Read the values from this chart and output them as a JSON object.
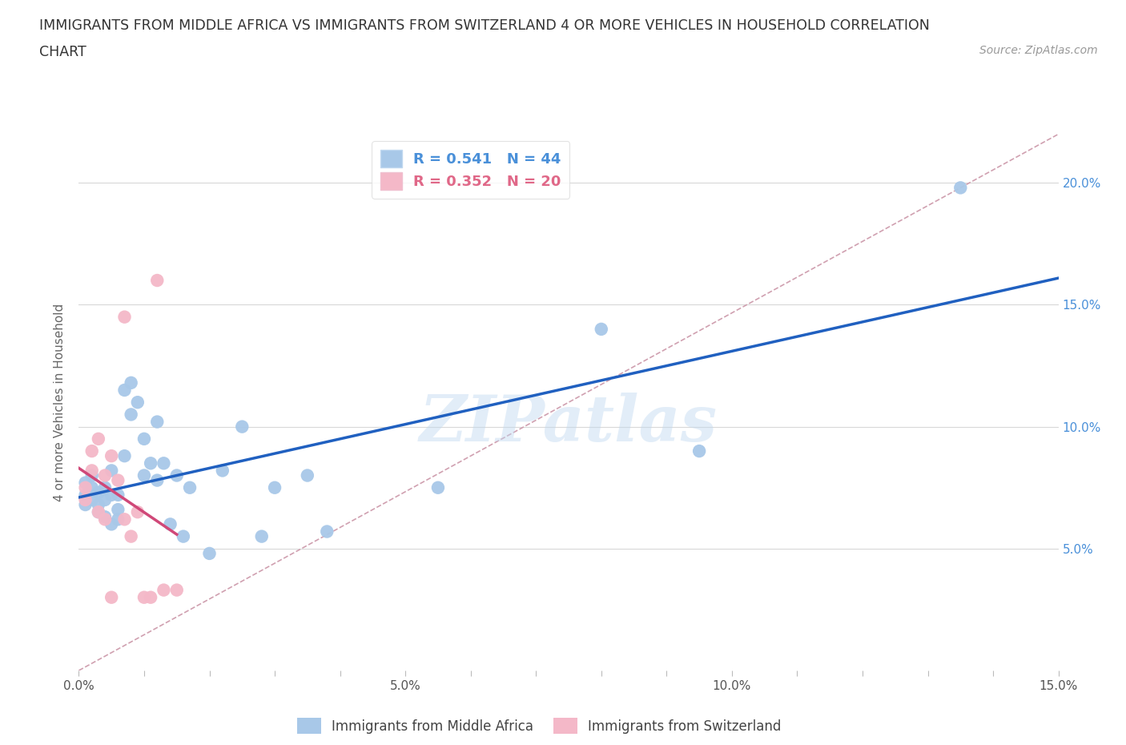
{
  "title_line1": "IMMIGRANTS FROM MIDDLE AFRICA VS IMMIGRANTS FROM SWITZERLAND 4 OR MORE VEHICLES IN HOUSEHOLD CORRELATION",
  "title_line2": "CHART",
  "source_text": "Source: ZipAtlas.com",
  "ylabel": "4 or more Vehicles in Household",
  "xmin": 0.0,
  "xmax": 0.15,
  "ymin": 0.0,
  "ymax": 0.22,
  "ytick_values": [
    0.0,
    0.05,
    0.1,
    0.15,
    0.2
  ],
  "watermark_text": "ZIPatlas",
  "series1_color": "#a8c8e8",
  "series2_color": "#f4b8c8",
  "series1_edge": "#90b8d8",
  "series2_edge": "#e898a8",
  "series1_label": "Immigrants from Middle Africa",
  "series2_label": "Immigrants from Switzerland",
  "R1": 0.541,
  "N1": 44,
  "R2": 0.352,
  "N2": 20,
  "legend_R1_color": "#4a90d9",
  "legend_R2_color": "#e06888",
  "right_axis_color": "#4a90d9",
  "trendline1_color": "#2060c0",
  "trendline2_color": "#d04878",
  "diagonal_color": "#d0a0b0",
  "diagonal_linestyle": "--",
  "hline_color": "#d8d8d8",
  "background_color": "#ffffff",
  "series1_x": [
    0.001,
    0.001,
    0.001,
    0.002,
    0.002,
    0.002,
    0.003,
    0.003,
    0.003,
    0.004,
    0.004,
    0.004,
    0.005,
    0.005,
    0.005,
    0.006,
    0.006,
    0.006,
    0.007,
    0.007,
    0.008,
    0.008,
    0.009,
    0.01,
    0.01,
    0.011,
    0.012,
    0.012,
    0.013,
    0.014,
    0.015,
    0.016,
    0.017,
    0.02,
    0.022,
    0.025,
    0.028,
    0.03,
    0.035,
    0.038,
    0.055,
    0.08,
    0.095,
    0.135
  ],
  "series1_y": [
    0.072,
    0.077,
    0.068,
    0.075,
    0.08,
    0.07,
    0.065,
    0.073,
    0.068,
    0.063,
    0.075,
    0.07,
    0.06,
    0.082,
    0.072,
    0.062,
    0.066,
    0.072,
    0.115,
    0.088,
    0.105,
    0.118,
    0.11,
    0.08,
    0.095,
    0.085,
    0.102,
    0.078,
    0.085,
    0.06,
    0.08,
    0.055,
    0.075,
    0.048,
    0.082,
    0.1,
    0.055,
    0.075,
    0.08,
    0.057,
    0.075,
    0.14,
    0.09,
    0.198
  ],
  "series2_x": [
    0.001,
    0.001,
    0.002,
    0.002,
    0.003,
    0.003,
    0.004,
    0.004,
    0.005,
    0.005,
    0.006,
    0.007,
    0.007,
    0.008,
    0.009,
    0.01,
    0.011,
    0.012,
    0.013,
    0.015
  ],
  "series2_y": [
    0.07,
    0.075,
    0.09,
    0.082,
    0.065,
    0.095,
    0.08,
    0.062,
    0.088,
    0.03,
    0.078,
    0.145,
    0.062,
    0.055,
    0.065,
    0.03,
    0.03,
    0.16,
    0.033,
    0.033
  ]
}
